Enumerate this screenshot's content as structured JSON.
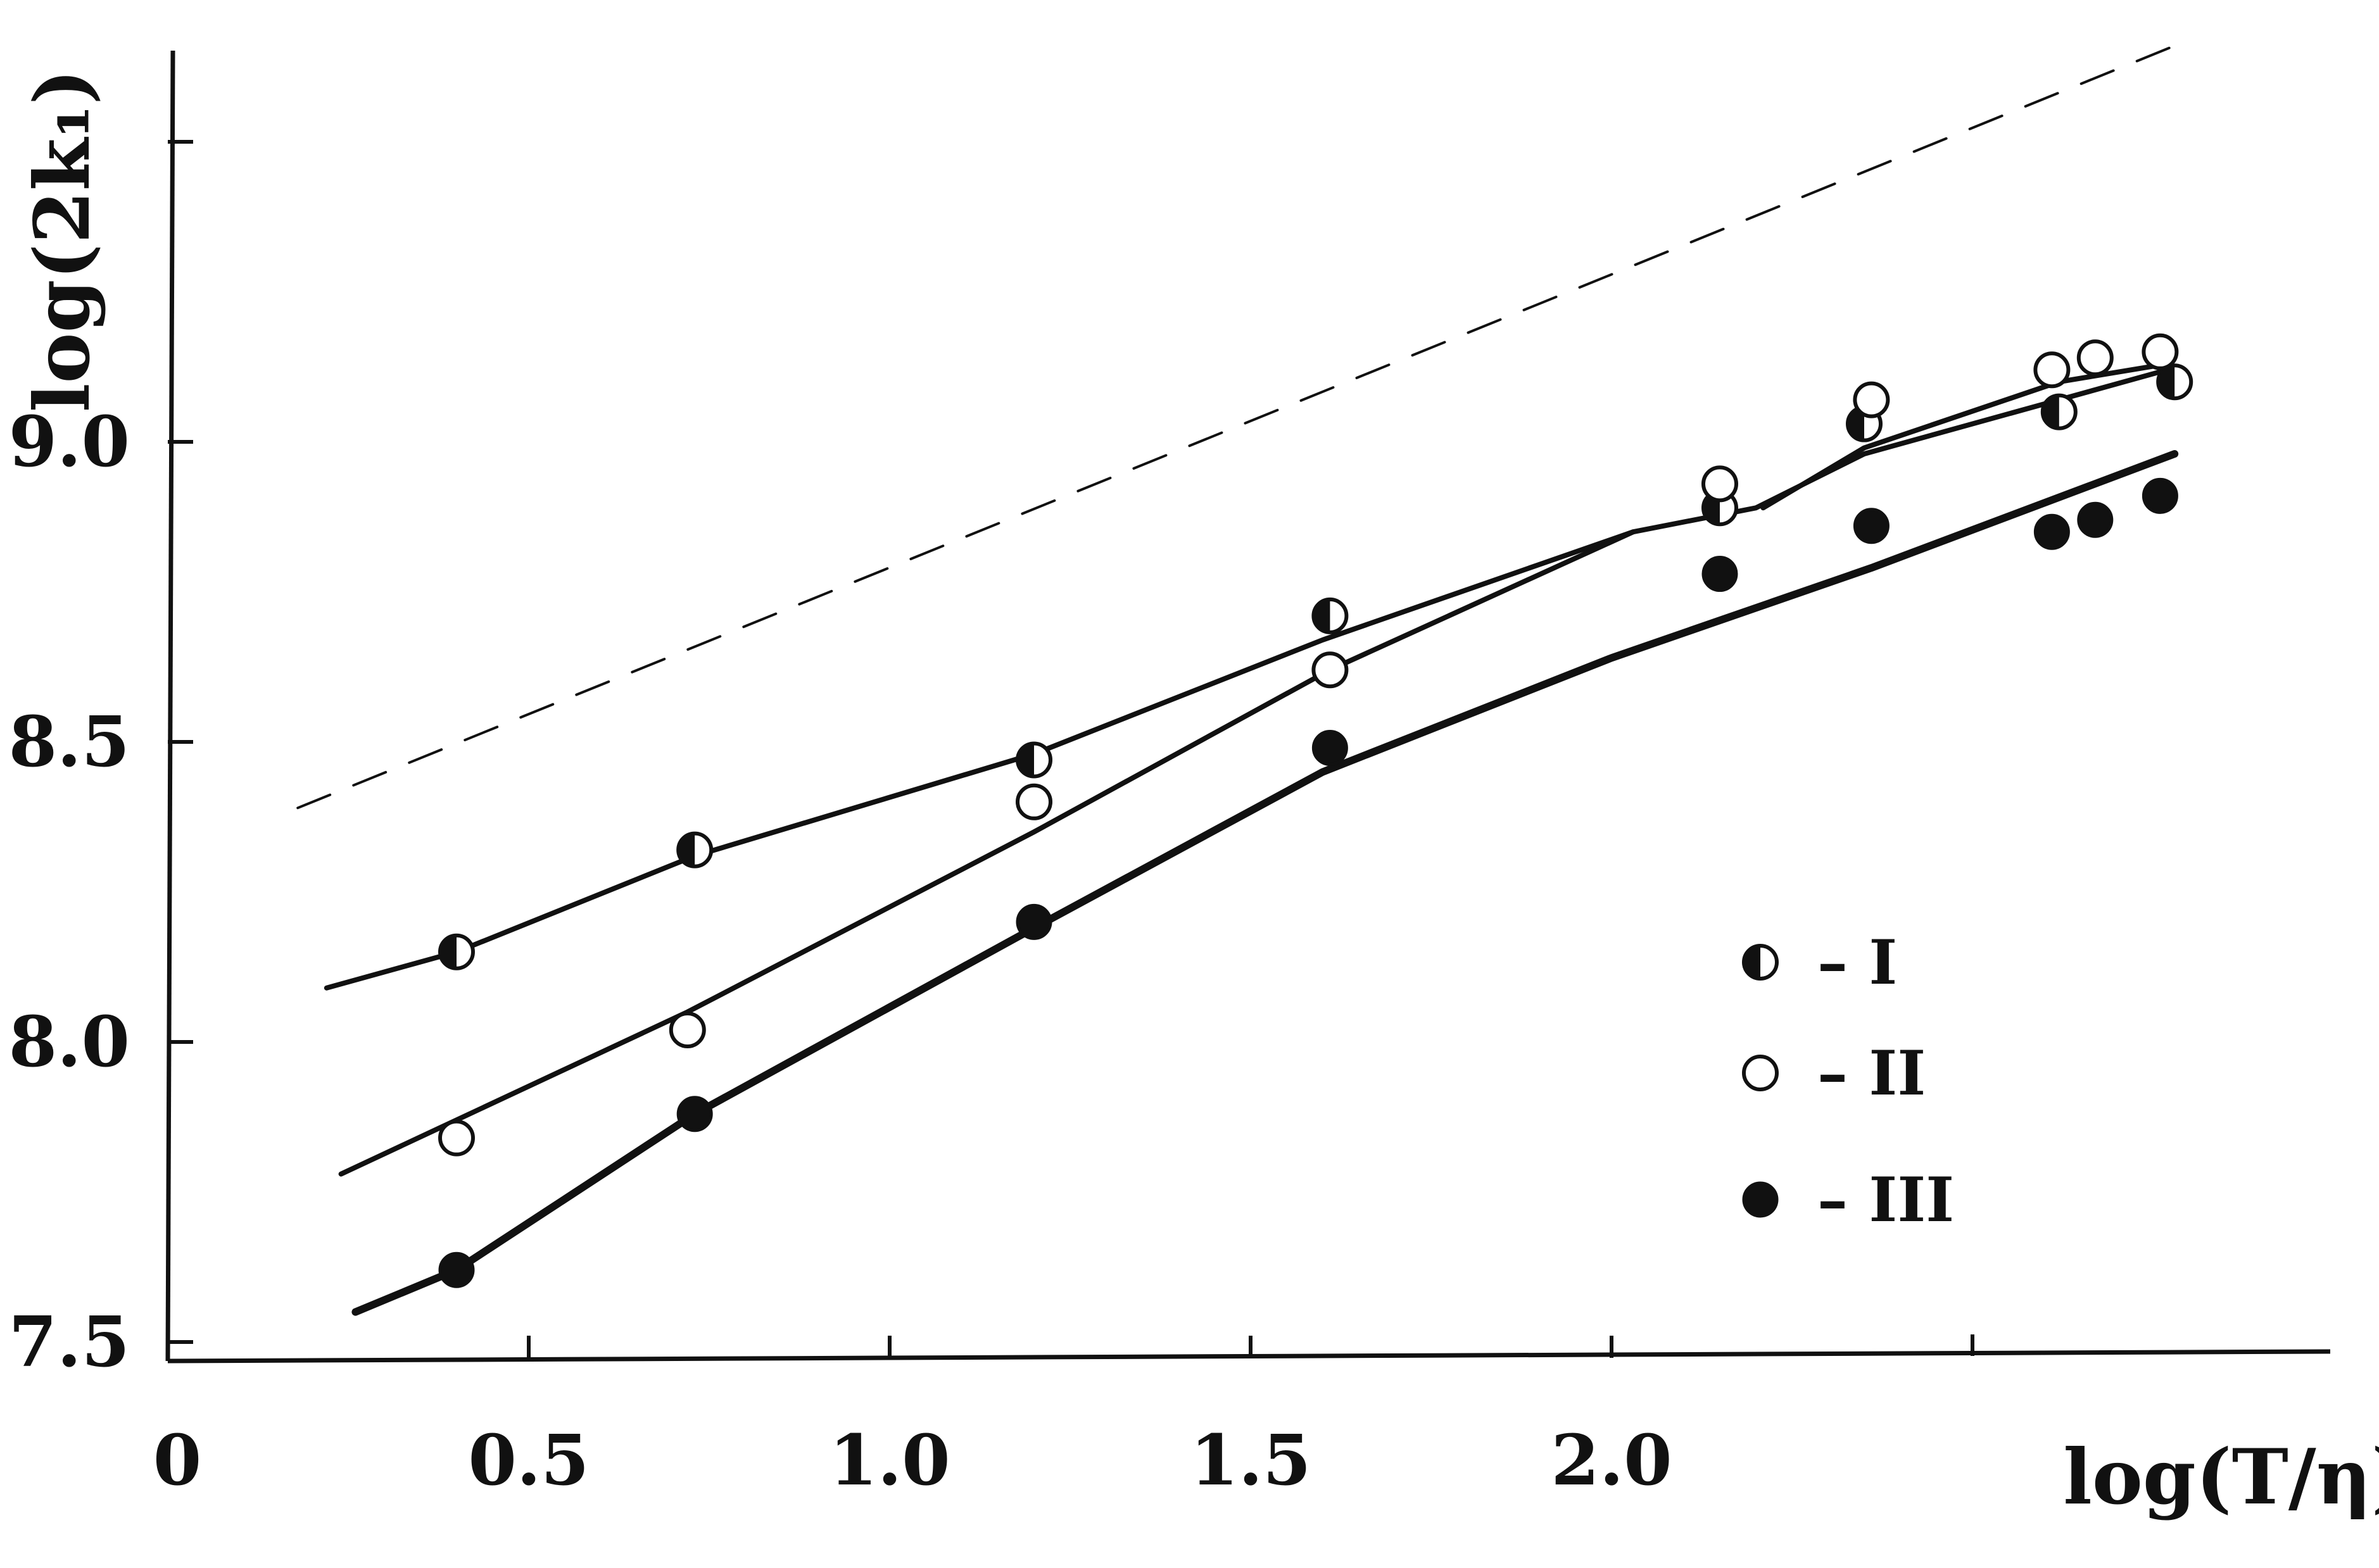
{
  "chart_data": {
    "type": "scatter",
    "title": "",
    "xlabel": "log(T/η)",
    "ylabel": "log(2k₁)",
    "xlim": [
      0,
      3.05
    ],
    "ylim": [
      7.48,
      9.75
    ],
    "x_origin_label": "0",
    "x_ticks": [
      0.5,
      1.0,
      1.5,
      2.0
    ],
    "x_tick_labels": [
      "0.5",
      "1.0",
      "1.5",
      "2.0"
    ],
    "x_extra_ticks": [
      2.5
    ],
    "y_ticks": [
      7.5,
      8.0,
      8.5,
      9.0
    ],
    "y_tick_labels": [
      "7.5",
      "8.0",
      "8.5",
      "9.0"
    ],
    "y_extra_ticks": [
      9.5
    ],
    "grid": false,
    "legend_position": "right",
    "series": [
      {
        "name": "I",
        "marker": "half-filled-circle",
        "color": "#111111",
        "x": [
          0.4,
          0.73,
          1.2,
          1.61,
          2.15,
          2.35,
          2.62,
          2.78
        ],
        "y": [
          8.15,
          8.32,
          8.47,
          8.71,
          8.89,
          9.03,
          9.05,
          9.1
        ]
      },
      {
        "name": "II",
        "marker": "open-circle",
        "color": "#111111",
        "x": [
          0.4,
          0.72,
          1.2,
          1.61,
          2.15,
          2.36,
          2.61,
          2.67,
          2.76
        ],
        "y": [
          7.84,
          8.02,
          8.4,
          8.62,
          8.93,
          9.07,
          9.12,
          9.14,
          9.15
        ]
      },
      {
        "name": "III",
        "marker": "filled-circle",
        "color": "#111111",
        "x": [
          0.4,
          0.73,
          1.2,
          1.61,
          2.15,
          2.36,
          2.61,
          2.67,
          2.76
        ],
        "y": [
          7.62,
          7.88,
          8.2,
          8.49,
          8.78,
          8.86,
          8.85,
          8.87,
          8.91
        ]
      }
    ],
    "fit_lines": [
      {
        "series": "I",
        "style": "solid",
        "x": [
          0.22,
          0.4,
          0.73,
          1.2,
          1.6,
          2.03
        ],
        "y": [
          8.09,
          8.15,
          8.31,
          8.48,
          8.67,
          8.85
        ]
      },
      {
        "series": "I-upper",
        "style": "solid",
        "x": [
          2.21,
          2.35,
          2.62,
          2.77
        ],
        "y": [
          8.89,
          8.99,
          9.1,
          9.13
        ]
      },
      {
        "series": "II",
        "style": "solid",
        "x": [
          0.24,
          0.72,
          1.2,
          1.61,
          2.03,
          2.2,
          2.35,
          2.77
        ],
        "y": [
          7.78,
          8.05,
          8.35,
          8.62,
          8.85,
          8.89,
          8.98,
          9.12
        ]
      },
      {
        "series": "III",
        "style": "solid",
        "x": [
          0.26,
          0.4,
          0.73,
          1.2,
          1.6,
          2.0,
          2.36,
          2.78
        ],
        "y": [
          7.55,
          7.62,
          7.88,
          8.19,
          8.45,
          8.64,
          8.79,
          8.98
        ]
      },
      {
        "series": "reference",
        "style": "dashed",
        "x": [
          0.18,
          2.78
        ],
        "y": [
          8.39,
          9.66
        ]
      }
    ]
  }
}
